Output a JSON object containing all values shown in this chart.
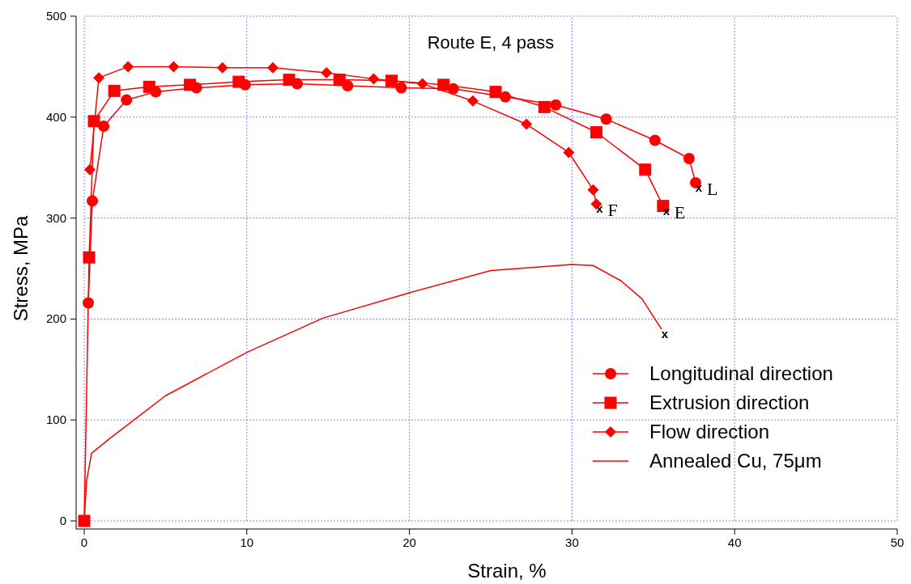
{
  "chart_data": {
    "type": "line",
    "title": "Route E, 4 pass",
    "xlabel": "Strain, %",
    "ylabel": "Stress, MPa",
    "xlim": [
      0,
      50
    ],
    "ylim": [
      0,
      500
    ],
    "xticks": [
      0,
      10,
      20,
      30,
      40,
      50
    ],
    "yticks": [
      0,
      100,
      200,
      300,
      400,
      500
    ],
    "grid": true,
    "legend": "bottom right",
    "line_style": "solid",
    "series": [
      {
        "name": "Longitudinal direction",
        "color": "#ff0000",
        "marker": "circle",
        "x": [
          0.25,
          0.5,
          1.2,
          2.6,
          4.4,
          6.9,
          9.9,
          13.1,
          16.2,
          19.5,
          22.7,
          25.9,
          29,
          32.1,
          35.1,
          37.2,
          37.6
        ],
        "values": [
          216,
          317,
          391,
          417,
          425,
          429,
          432,
          433,
          431,
          429,
          428,
          420,
          412,
          398,
          377,
          359,
          335
        ]
      },
      {
        "name": "Extrusion direction",
        "color": "#ff0000",
        "marker": "square",
        "x": [
          0,
          0.3,
          0.6,
          1.85,
          4,
          6.5,
          9.5,
          12.6,
          15.7,
          18.9,
          22.1,
          25.3,
          28.3,
          31.5,
          34.5,
          35.6
        ],
        "values": [
          0,
          261,
          396,
          426,
          430,
          432,
          435,
          437,
          437,
          436,
          432,
          425,
          410,
          385,
          348,
          312
        ]
      },
      {
        "name": "Flow direction",
        "color": "#ff0000",
        "marker": "diamond",
        "x": [
          0.35,
          0.9,
          2.7,
          5.5,
          8.5,
          11.6,
          14.9,
          17.8,
          20.8,
          23.9,
          27.2,
          29.8,
          31.3,
          31.5
        ],
        "values": [
          348,
          439,
          450,
          450,
          449,
          449,
          444,
          438,
          433,
          416,
          393,
          365,
          328,
          314
        ]
      },
      {
        "name": "Annealed Cu, 75μm",
        "color": "#ff0000",
        "marker": "none",
        "x": [
          0,
          0.15,
          0.45,
          1.6,
          5,
          10,
          14.7,
          20,
          25,
          30,
          31.3,
          33,
          34.3,
          35.5
        ],
        "values": [
          0,
          40,
          67,
          82,
          124,
          167,
          201,
          226,
          248,
          254,
          253,
          238,
          220,
          190
        ]
      }
    ],
    "annotations": [
      {
        "text": "x",
        "x": 37.6,
        "y": 335
      },
      "L",
      {
        "text": "x",
        "x": 35.6,
        "y": 312
      },
      "E",
      {
        "text": "x",
        "x": 31.5,
        "y": 314
      },
      "F",
      {
        "text": "x",
        "x": 35.5,
        "y": 190
      }
    ]
  }
}
